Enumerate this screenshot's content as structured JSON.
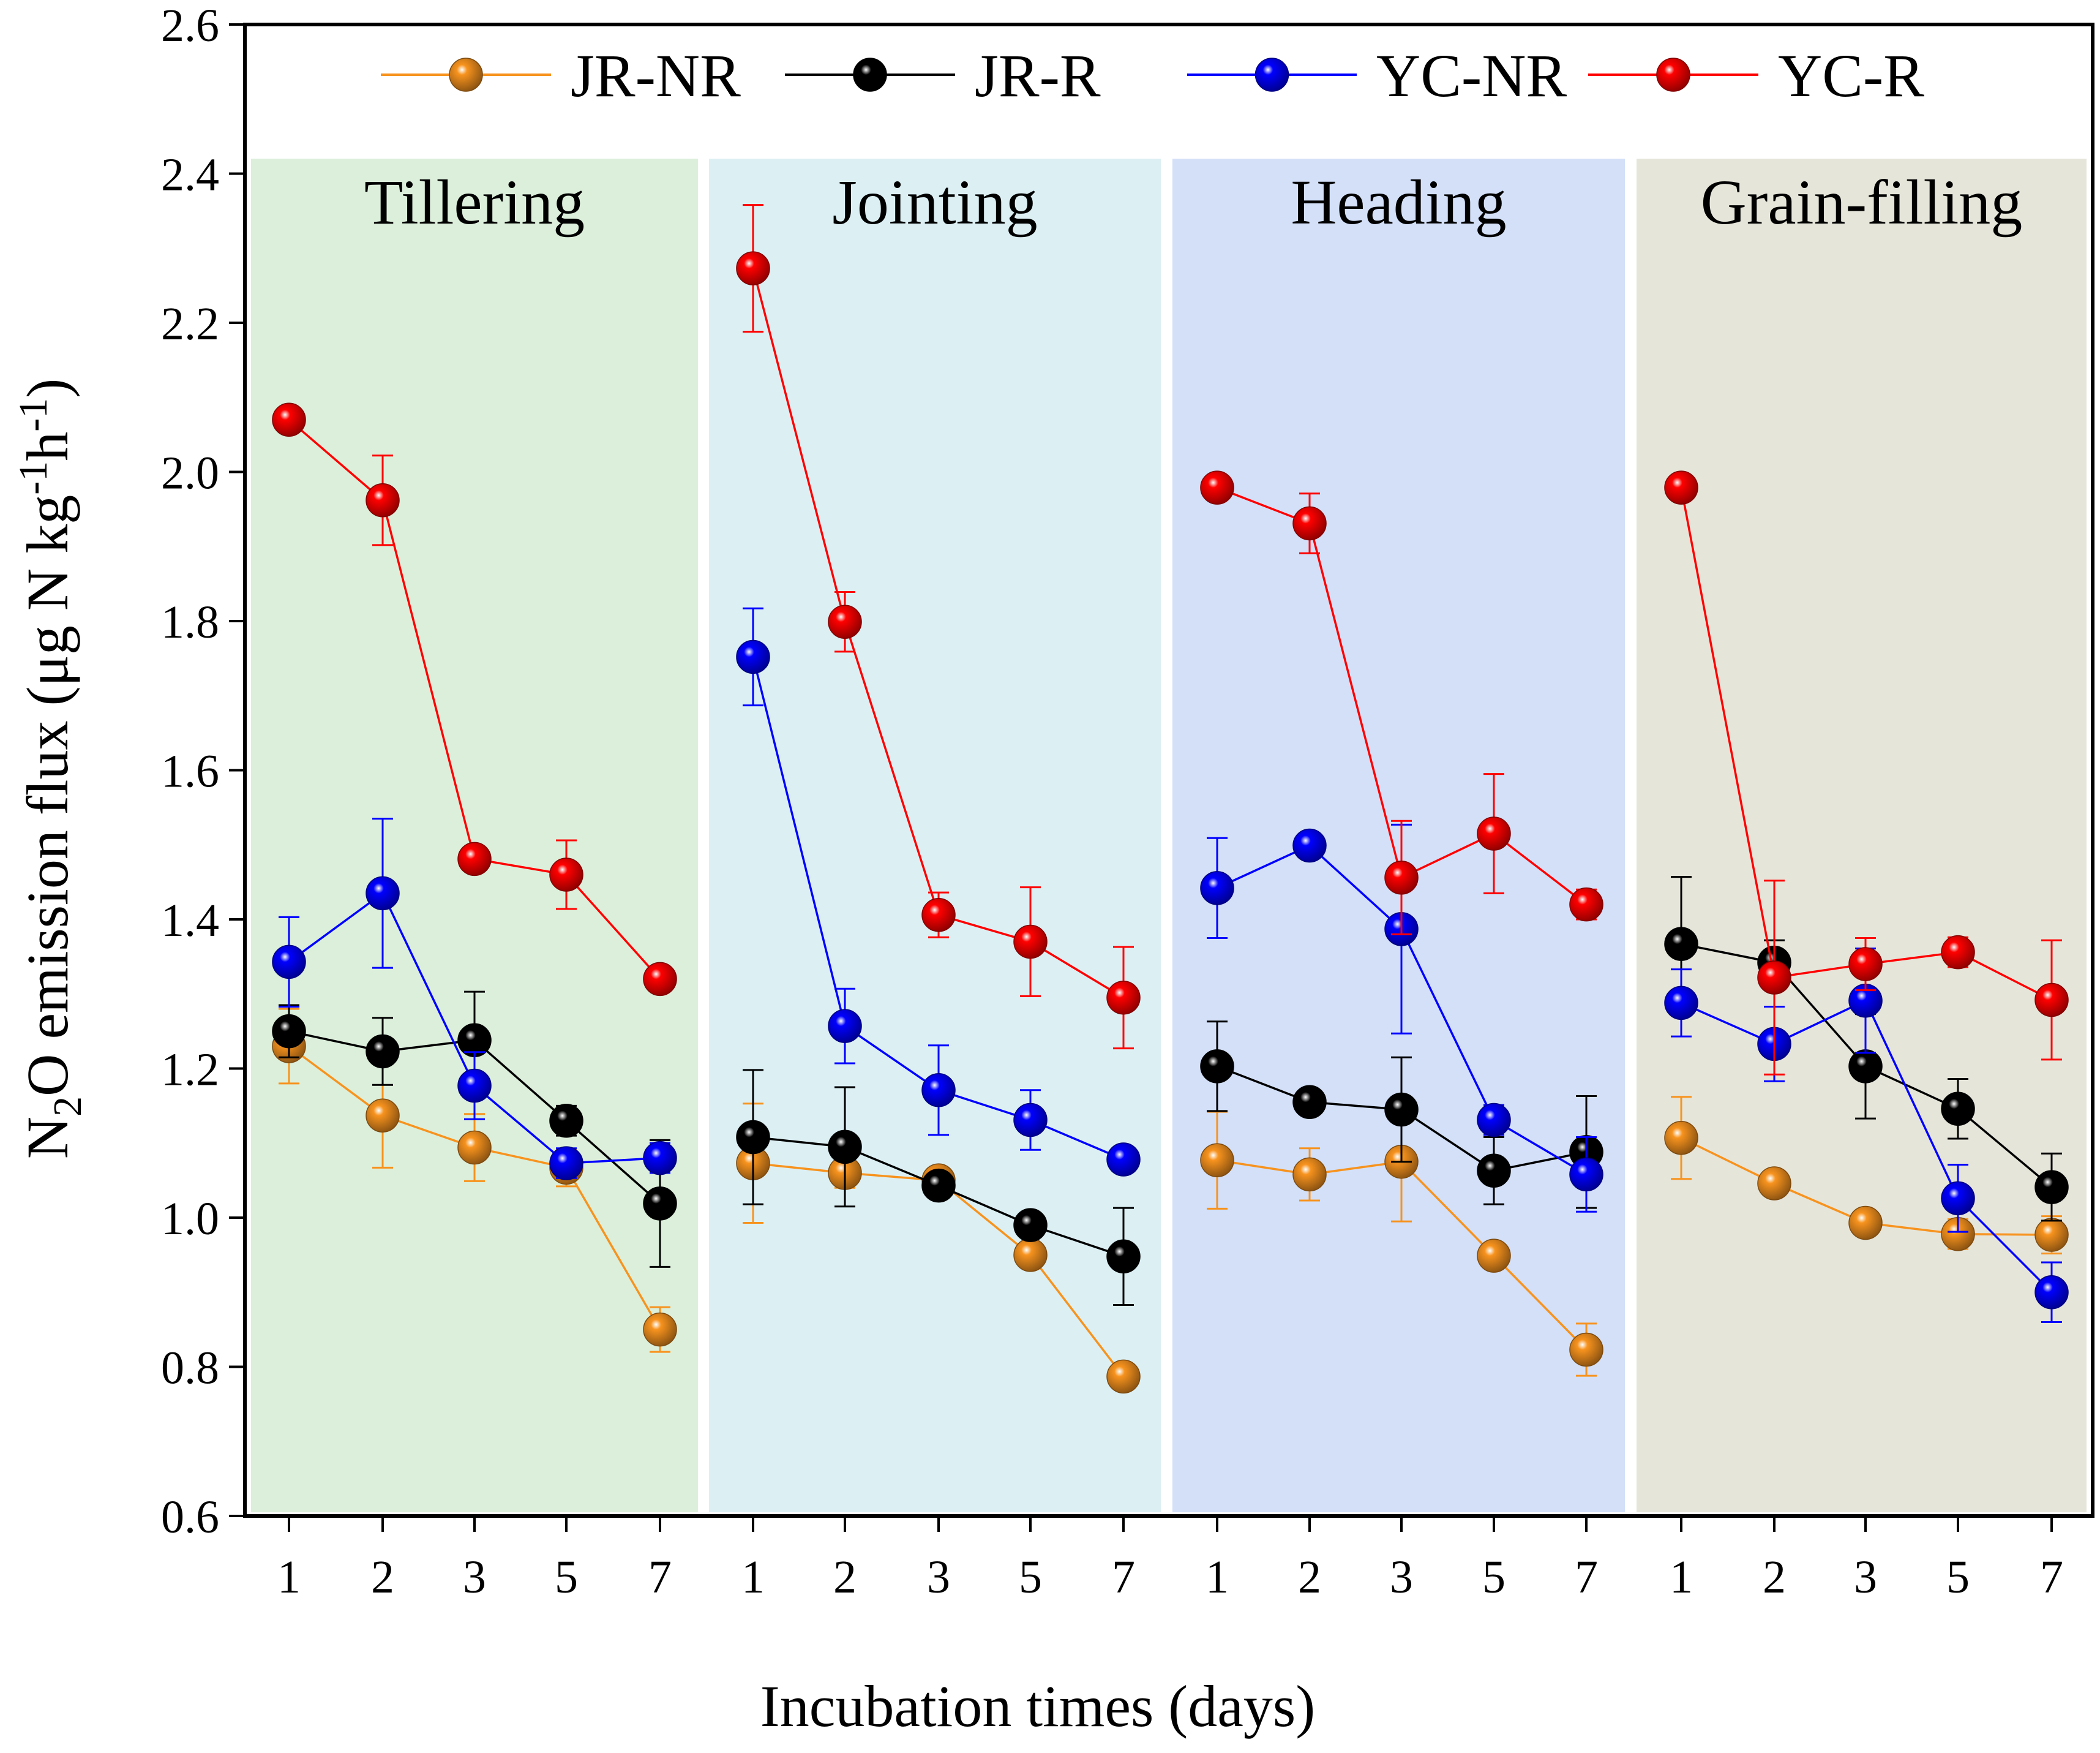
{
  "chart_data": {
    "type": "line",
    "ylabel_parts": [
      "N",
      "2",
      "O emission flux (μg N kg",
      "-1",
      "h",
      "-1",
      ")"
    ],
    "xlabel": "Incubation times (days)",
    "ylim": [
      0.6,
      2.6
    ],
    "yticks": [
      "0.6",
      "0.8",
      "1.0",
      "1.2",
      "1.4",
      "1.6",
      "1.8",
      "2.0",
      "2.2",
      "2.4",
      "2.6"
    ],
    "panel_ylim_top": 2.42,
    "x_tick_labels": [
      "1",
      "2",
      "3",
      "5",
      "7"
    ],
    "stages": [
      {
        "name": "Tillering",
        "color": "#dcefdb"
      },
      {
        "name": "Jointing",
        "color": "#dcf0f4"
      },
      {
        "name": "Heading",
        "color": "#d3e0f8"
      },
      {
        "name": "Grain-filling",
        "color": "#e6e5da"
      }
    ],
    "legend_position": "top",
    "series": [
      {
        "name": "JR-NR",
        "color": "#f7931e",
        "stages": [
          {
            "values": [
              1.23,
              1.137,
              1.094,
              1.067,
              0.85
            ],
            "errors": [
              0.05,
              0.07,
              0.045,
              0.025,
              0.03
            ]
          },
          {
            "values": [
              1.073,
              1.06,
              1.05,
              0.95,
              0.787
            ],
            "errors": [
              0.08,
              0.02,
              0.01,
              0.015,
              0.01
            ]
          },
          {
            "values": [
              1.077,
              1.058,
              1.075,
              0.949,
              0.823
            ],
            "errors": [
              0.065,
              0.035,
              0.08,
              0.01,
              0.035
            ]
          },
          {
            "values": [
              1.107,
              1.046,
              0.993,
              0.978,
              0.977
            ],
            "errors": [
              0.055,
              0.01,
              0.01,
              0.02,
              0.025
            ]
          }
        ]
      },
      {
        "name": "JR-R",
        "color": "#000000",
        "stages": [
          {
            "values": [
              1.25,
              1.223,
              1.238,
              1.13,
              1.019
            ],
            "errors": [
              0.035,
              0.045,
              0.065,
              0.02,
              0.085
            ]
          },
          {
            "values": [
              1.108,
              1.095,
              1.043,
              0.99,
              0.948
            ],
            "errors": [
              0.09,
              0.08,
              0.01,
              0.015,
              0.065
            ]
          },
          {
            "values": [
              1.203,
              1.155,
              1.145,
              1.063,
              1.088
            ],
            "errors": [
              0.06,
              0.015,
              0.07,
              0.045,
              0.075
            ]
          },
          {
            "values": [
              1.367,
              1.342,
              1.203,
              1.146,
              1.041
            ],
            "errors": [
              0.09,
              0.03,
              0.07,
              0.04,
              0.045
            ]
          }
        ]
      },
      {
        "name": "YC-NR",
        "color": "#0000ff",
        "stages": [
          {
            "values": [
              1.343,
              1.435,
              1.177,
              1.073,
              1.08
            ],
            "errors": [
              0.06,
              0.1,
              0.045,
              0.02,
              0.02
            ]
          },
          {
            "values": [
              1.752,
              1.257,
              1.171,
              1.131,
              1.078
            ],
            "errors": [
              0.065,
              0.05,
              0.06,
              0.04,
              0.015
            ]
          },
          {
            "values": [
              1.442,
              1.499,
              1.387,
              1.131,
              1.058
            ],
            "errors": [
              0.067,
              0.01,
              0.14,
              0.02,
              0.05
            ]
          },
          {
            "values": [
              1.288,
              1.233,
              1.291,
              1.026,
              0.9
            ],
            "errors": [
              0.045,
              0.05,
              0.07,
              0.045,
              0.04
            ]
          }
        ]
      },
      {
        "name": "YC-R",
        "color": "#ff0000",
        "stages": [
          {
            "values": [
              2.07,
              1.962,
              1.481,
              1.46,
              1.32
            ],
            "errors": [
              0.01,
              0.06,
              0.01,
              0.046,
              0.01
            ]
          },
          {
            "values": [
              2.273,
              1.799,
              1.406,
              1.37,
              1.295
            ],
            "errors": [
              0.085,
              0.04,
              0.03,
              0.073,
              0.068
            ]
          },
          {
            "values": [
              1.979,
              1.931,
              1.456,
              1.515,
              1.42
            ],
            "errors": [
              0.01,
              0.04,
              0.076,
              0.08,
              0.02
            ]
          },
          {
            "values": [
              1.979,
              1.322,
              1.34,
              1.356,
              1.292
            ],
            "errors": [
              0.01,
              0.13,
              0.035,
              0.02,
              0.08
            ]
          }
        ]
      }
    ]
  }
}
